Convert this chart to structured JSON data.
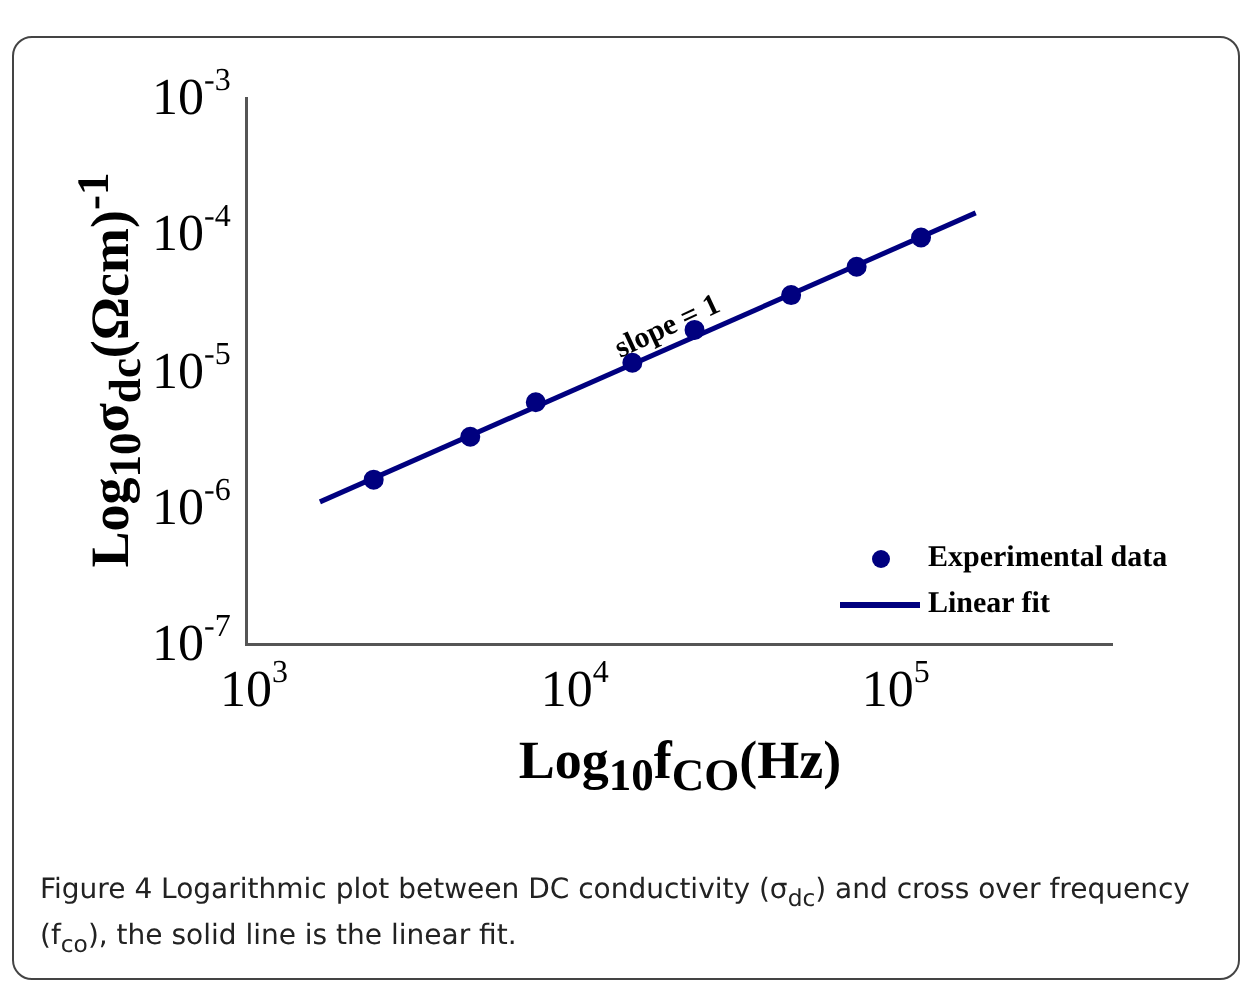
{
  "chart_data": {
    "type": "scatter",
    "xlabel": "Log$_{10}$f$_{CO}$(Hz)",
    "ylabel": "Log$_{10}$σ$_{dc}$(Ωcm)$^{-1}$",
    "log": "xy",
    "xlim": [
      1000,
      500000
    ],
    "xticks": [
      {
        "value": 1000,
        "label": "10$^{3}$"
      },
      {
        "value": 10000,
        "label": "10$^{4}$"
      },
      {
        "value": 100000,
        "label": "10$^{5}$"
      }
    ],
    "ylim": [
      1e-07,
      0.001
    ],
    "yticks": [
      {
        "value": 1e-07,
        "label": "10$^{-7}$"
      },
      {
        "value": 1e-06,
        "label": "10$^{-6}$"
      },
      {
        "value": 1e-05,
        "label": "10$^{-5}$"
      },
      {
        "value": 0.0001,
        "label": "10$^{-4}$"
      },
      {
        "value": 0.001,
        "label": "10$^{-3}$"
      }
    ],
    "grid": false,
    "legend": "bottom right",
    "series": [
      {
        "name": "Experimental data",
        "type": "scatter",
        "marker": "circle",
        "color": "#00007f",
        "x": [
          2500,
          5000,
          8000,
          16000,
          25000,
          50000,
          80000,
          127000
        ],
        "values": [
          1.6e-06,
          3.3e-06,
          5.9e-06,
          1.15e-05,
          2e-05,
          3.6e-05,
          5.8e-05,
          9.5e-05
        ]
      },
      {
        "name": "Linear fit",
        "type": "line",
        "marker": "none",
        "line_style": "solid",
        "color": "#00007f",
        "x": [
          1700,
          188000
        ],
        "values": [
          1.1e-06,
          0.000144
        ]
      }
    ],
    "annotations": [
      "slope = 1",
      "Figure 4 Logarithmic plot between DC conductivity (σ$_{dc}$) and cross over frequency (f$_{co}$), the solid line is the linear fit."
    ]
  }
}
